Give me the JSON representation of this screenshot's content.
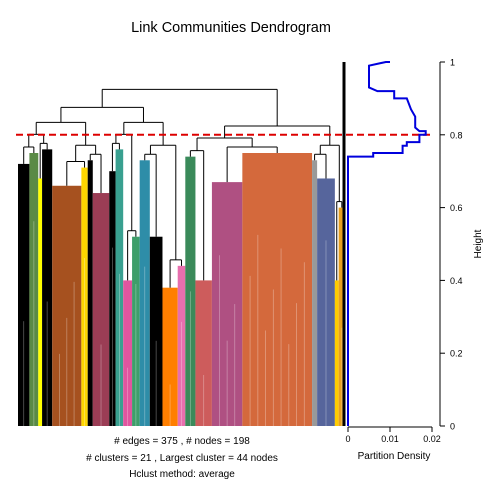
{
  "chart_data": {
    "type": "dendrogram",
    "title": "Link Communities Dendrogram",
    "height_axis": {
      "label": "Height",
      "range": [
        0,
        1
      ],
      "ticks": [
        0,
        0.2,
        0.4,
        0.6,
        0.8,
        1
      ],
      "tick_labels": [
        "0",
        "0.2",
        "0.4",
        "0.6",
        "0.8",
        "1"
      ]
    },
    "cut_height": 0.8,
    "cut_color": "#DD0000",
    "summary": {
      "edges_line": "# edges =  375 ,    # nodes =  198",
      "clusters_line": "# clusters =  21 ,   Largest cluster =  44  nodes",
      "method_line": "Hclust method:  average"
    },
    "partition_density": {
      "xlabel": "Partition Density",
      "range": [
        0,
        0.02
      ],
      "ticks": [
        0,
        0.01,
        0.02
      ],
      "tick_labels": [
        "0",
        "0.01",
        "0.02"
      ],
      "color": "#0000DD",
      "points": [
        [
          0.0,
          0.0
        ],
        [
          0.0,
          0.74
        ],
        [
          0.006,
          0.74
        ],
        [
          0.006,
          0.75
        ],
        [
          0.013,
          0.75
        ],
        [
          0.013,
          0.77
        ],
        [
          0.014,
          0.77
        ],
        [
          0.014,
          0.78
        ],
        [
          0.017,
          0.78
        ],
        [
          0.017,
          0.8
        ],
        [
          0.0185,
          0.8
        ],
        [
          0.0185,
          0.81
        ],
        [
          0.017,
          0.81
        ],
        [
          0.016,
          0.82
        ],
        [
          0.016,
          0.85
        ],
        [
          0.015,
          0.87
        ],
        [
          0.014,
          0.9
        ],
        [
          0.011,
          0.9
        ],
        [
          0.011,
          0.92
        ],
        [
          0.007,
          0.92
        ],
        [
          0.005,
          0.93
        ],
        [
          0.005,
          0.97
        ],
        [
          0.005,
          0.99
        ],
        [
          0.009,
          1.0
        ],
        [
          0.01,
          1.0
        ]
      ]
    },
    "communities": [
      {
        "width": 0.9,
        "top": 0.72,
        "color": "#000000"
      },
      {
        "width": 0.7,
        "top": 0.75,
        "color": "#5A8A46"
      },
      {
        "width": 0.3,
        "top": 0.68,
        "color": "#FFFF00"
      },
      {
        "width": 0.8,
        "top": 0.76,
        "color": "#000000"
      },
      {
        "width": 2.3,
        "top": 0.66,
        "color": "#A6511F"
      },
      {
        "width": 0.5,
        "top": 0.71,
        "color": "#FFD700"
      },
      {
        "width": 0.4,
        "top": 0.73,
        "color": "#000000"
      },
      {
        "width": 1.3,
        "top": 0.64,
        "color": "#9B3D55"
      },
      {
        "width": 0.5,
        "top": 0.7,
        "color": "#000000"
      },
      {
        "width": 0.6,
        "top": 0.76,
        "color": "#39A090"
      },
      {
        "width": 0.7,
        "top": 0.4,
        "color": "#E0559F"
      },
      {
        "width": 0.6,
        "top": 0.52,
        "color": "#3E9E6A"
      },
      {
        "width": 0.8,
        "top": 0.73,
        "color": "#2E8DA8"
      },
      {
        "width": 1.0,
        "top": 0.52,
        "color": "#000000"
      },
      {
        "width": 1.2,
        "top": 0.38,
        "color": "#FF7F00"
      },
      {
        "width": 0.6,
        "top": 0.44,
        "color": "#E76FAE"
      },
      {
        "width": 0.8,
        "top": 0.74,
        "color": "#3A8A5A"
      },
      {
        "width": 1.3,
        "top": 0.4,
        "color": "#CD5C5C"
      },
      {
        "width": 2.4,
        "top": 0.67,
        "color": "#AF5082"
      },
      {
        "width": 5.5,
        "top": 0.75,
        "color": "#D4693C"
      },
      {
        "width": 0.4,
        "top": 0.73,
        "color": "#999999"
      },
      {
        "width": 1.4,
        "top": 0.68,
        "color": "#56659C"
      },
      {
        "width": 0.3,
        "top": 0.4,
        "color": "#FFCC00"
      },
      {
        "width": 0.5,
        "top": 0.6,
        "color": "#E8A020"
      }
    ]
  }
}
